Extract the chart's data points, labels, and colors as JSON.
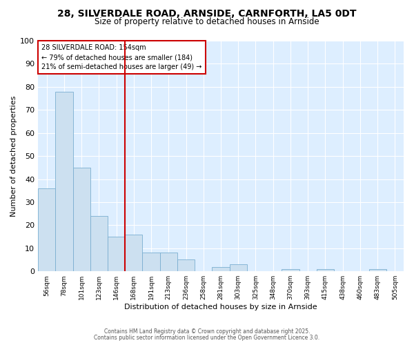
{
  "title_line1": "28, SILVERDALE ROAD, ARNSIDE, CARNFORTH, LA5 0DT",
  "title_line2": "Size of property relative to detached houses in Arnside",
  "xlabel": "Distribution of detached houses by size in Arnside",
  "ylabel": "Number of detached properties",
  "categories": [
    "56sqm",
    "78sqm",
    "101sqm",
    "123sqm",
    "146sqm",
    "168sqm",
    "191sqm",
    "213sqm",
    "236sqm",
    "258sqm",
    "281sqm",
    "303sqm",
    "325sqm",
    "348sqm",
    "370sqm",
    "393sqm",
    "415sqm",
    "438sqm",
    "460sqm",
    "483sqm",
    "505sqm"
  ],
  "values": [
    36,
    78,
    45,
    24,
    15,
    16,
    8,
    8,
    5,
    0,
    2,
    3,
    0,
    0,
    1,
    0,
    1,
    0,
    0,
    1,
    0
  ],
  "bar_color": "#cce0f0",
  "bar_edge_color": "#7aaed0",
  "ylim": [
    0,
    100
  ],
  "yticks": [
    0,
    10,
    20,
    30,
    40,
    50,
    60,
    70,
    80,
    90,
    100
  ],
  "annotation_box_text": "28 SILVERDALE ROAD: 154sqm\n← 79% of detached houses are smaller (184)\n21% of semi-detached houses are larger (49) →",
  "annotation_box_color": "#cc0000",
  "vline_x": 4.5,
  "vline_color": "#cc0000",
  "background_color": "#ffffff",
  "plot_bg_color": "#ddeeff",
  "grid_color": "#ffffff",
  "footnote1": "Contains HM Land Registry data © Crown copyright and database right 2025.",
  "footnote2": "Contains public sector information licensed under the Open Government Licence 3.0."
}
